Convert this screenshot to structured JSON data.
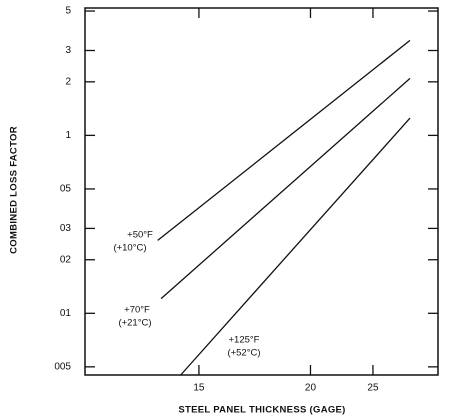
{
  "chart_data": {
    "type": "line",
    "xlabel": "STEEL PANEL THICKNESS (GAGE)",
    "ylabel": "COMBINED LOSS FACTOR",
    "xscale": "gage",
    "yscale": "log",
    "xlim": [
      11.8,
      39.7
    ],
    "ylim": [
      0.045,
      5.2
    ],
    "xticks": [
      15,
      20,
      25
    ],
    "yticks": [
      5,
      3,
      2,
      1,
      {
        "value": 0.5,
        "label": "05"
      },
      {
        "value": 0.3,
        "label": "03"
      },
      {
        "value": 0.2,
        "label": "02"
      },
      {
        "value": 0.1,
        "label": "01"
      },
      {
        "value": 0.05,
        "label": "005"
      }
    ],
    "series": [
      {
        "label": [
          "+50°F",
          "(+10°C)"
        ],
        "color": "#111111",
        "x": [
          13.7,
          30.4
        ],
        "values": [
          0.257,
          3.42
        ]
      },
      {
        "label": [
          "+70°F",
          "(+21°C)"
        ],
        "color": "#111111",
        "x": [
          13.8,
          30.4
        ],
        "values": [
          0.121,
          2.09
        ]
      },
      {
        "label": [
          "+125°F",
          "(+52°C)"
        ],
        "color": "#111111",
        "x": [
          14.4,
          30.4
        ],
        "values": [
          0.045,
          1.25
        ]
      }
    ]
  }
}
